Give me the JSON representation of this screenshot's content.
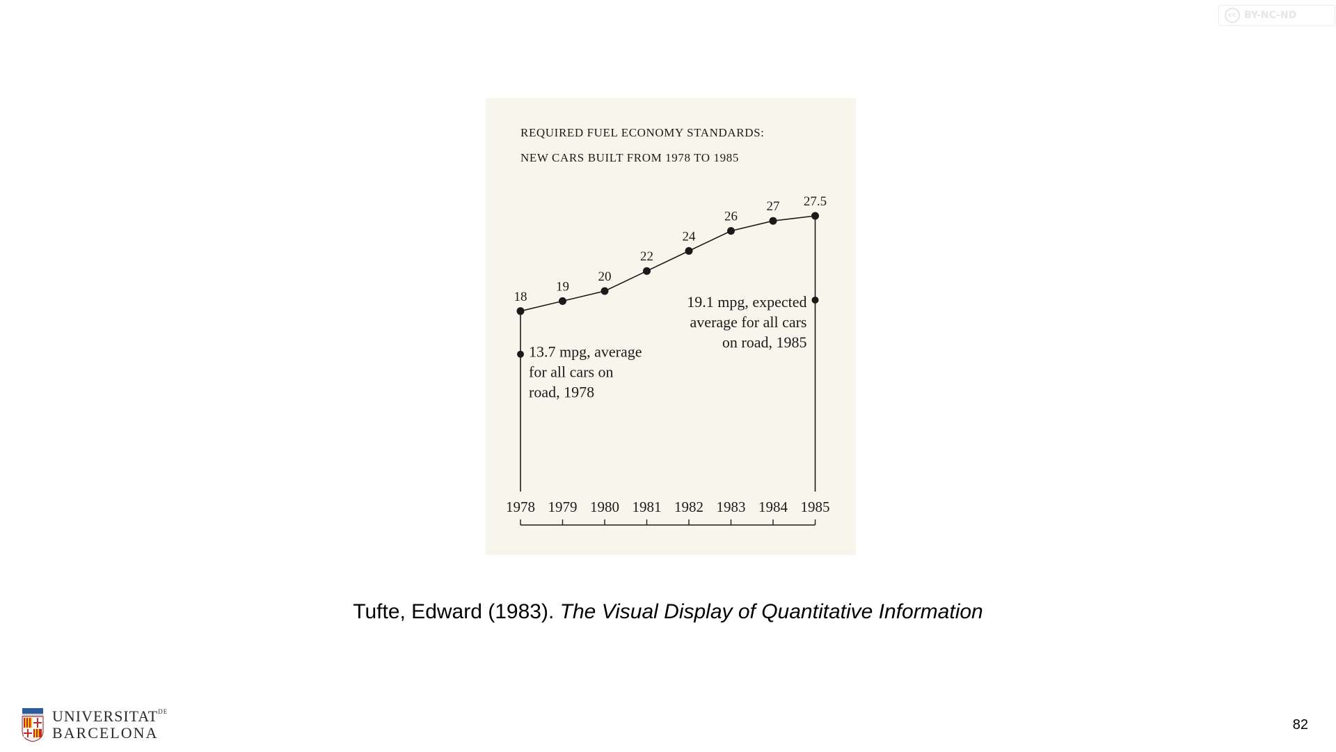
{
  "license_badge": {
    "symbol": "cc",
    "text": "BY-NC-ND"
  },
  "chart_data": {
    "type": "line",
    "title_line1": "REQUIRED FUEL ECONOMY STANDARDS:",
    "title_line2": "NEW CARS BUILT FROM 1978 TO 1985",
    "x": [
      1978,
      1979,
      1980,
      1981,
      1982,
      1983,
      1984,
      1985
    ],
    "tick_labels": [
      "1978",
      "1979",
      "1980",
      "1981",
      "1982",
      "1983",
      "1984",
      "1985"
    ],
    "values": [
      18,
      19,
      20,
      22,
      24,
      26,
      27,
      27.5
    ],
    "value_labels": [
      "18",
      "19",
      "20",
      "22",
      "24",
      "26",
      "27",
      "27.5"
    ],
    "annotations": [
      {
        "x": 1978,
        "y": 13.7,
        "lines": [
          "13.7 mpg, average",
          "for all cars on",
          "road, 1978"
        ]
      },
      {
        "x": 1985,
        "y": 19.1,
        "lines": [
          "19.1 mpg, expected",
          "average for all cars",
          "on road, 1985"
        ]
      }
    ],
    "xlabel": "",
    "ylabel": "",
    "grid": false,
    "paper_color": "#f8f6ec",
    "ink_color": "#1a1a1a"
  },
  "caption": {
    "author": "Tufte, Edward (1983). ",
    "title": "The Visual Display of Quantitative Information"
  },
  "logo": {
    "line1": "UNIVERSITAT",
    "line1_suffix": "DE",
    "line2": "BARCELONA"
  },
  "page_number": "82"
}
